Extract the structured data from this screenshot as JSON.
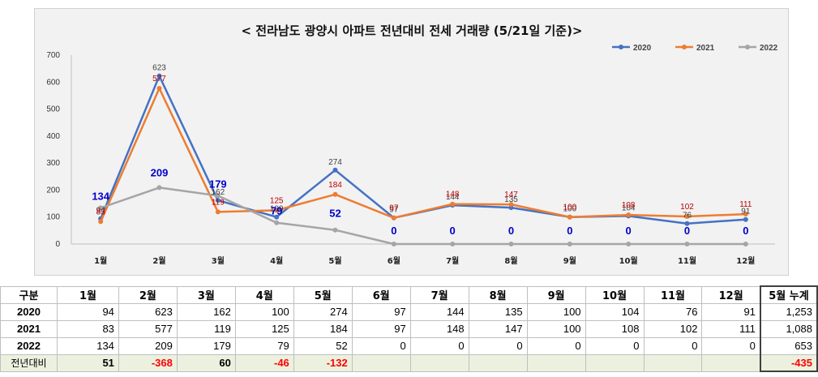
{
  "chart_data": {
    "type": "line",
    "title": "< 전라남도 광양시 아파트 전년대비 전세 거래량 (5/21일 기준)>",
    "categories": [
      "1월",
      "2월",
      "3월",
      "4월",
      "5월",
      "6월",
      "7월",
      "8월",
      "9월",
      "10월",
      "11월",
      "12월"
    ],
    "ylim": [
      0,
      700
    ],
    "yticks": [
      0,
      100,
      200,
      300,
      400,
      500,
      600,
      700
    ],
    "grid": false,
    "legend_position": "top-right",
    "series": [
      {
        "name": "2020",
        "color": "#4472c4",
        "values": [
          94,
          623,
          162,
          100,
          274,
          97,
          144,
          135,
          100,
          104,
          76,
          91
        ]
      },
      {
        "name": "2021",
        "color": "#ed7d31",
        "values": [
          83,
          577,
          119,
          125,
          184,
          97,
          148,
          147,
          100,
          108,
          102,
          111
        ]
      },
      {
        "name": "2022",
        "color": "#a5a5a5",
        "values": [
          134,
          209,
          179,
          79,
          52,
          0,
          0,
          0,
          0,
          0,
          0,
          0
        ]
      }
    ]
  },
  "table": {
    "corner": "구분",
    "months": [
      "1월",
      "2월",
      "3월",
      "4월",
      "5월",
      "6월",
      "7월",
      "8월",
      "9월",
      "10월",
      "11월",
      "12월"
    ],
    "total_header": "5월 누계",
    "rows": [
      {
        "label": "2020",
        "cells": [
          "94",
          "623",
          "162",
          "100",
          "274",
          "97",
          "144",
          "135",
          "100",
          "104",
          "76",
          "91"
        ],
        "total": "1,253"
      },
      {
        "label": "2021",
        "cells": [
          "83",
          "577",
          "119",
          "125",
          "184",
          "97",
          "148",
          "147",
          "100",
          "108",
          "102",
          "111"
        ],
        "total": "1,088"
      },
      {
        "label": "2022",
        "cells": [
          "134",
          "209",
          "179",
          "79",
          "52",
          "0",
          "0",
          "0",
          "0",
          "0",
          "0",
          "0"
        ],
        "total": "653"
      }
    ],
    "diff": {
      "label": "전년대비",
      "cells": [
        "51",
        "-368",
        "60",
        "-46",
        "-132",
        "",
        "",
        "",
        "",
        "",
        "",
        ""
      ],
      "total": "-435"
    }
  }
}
